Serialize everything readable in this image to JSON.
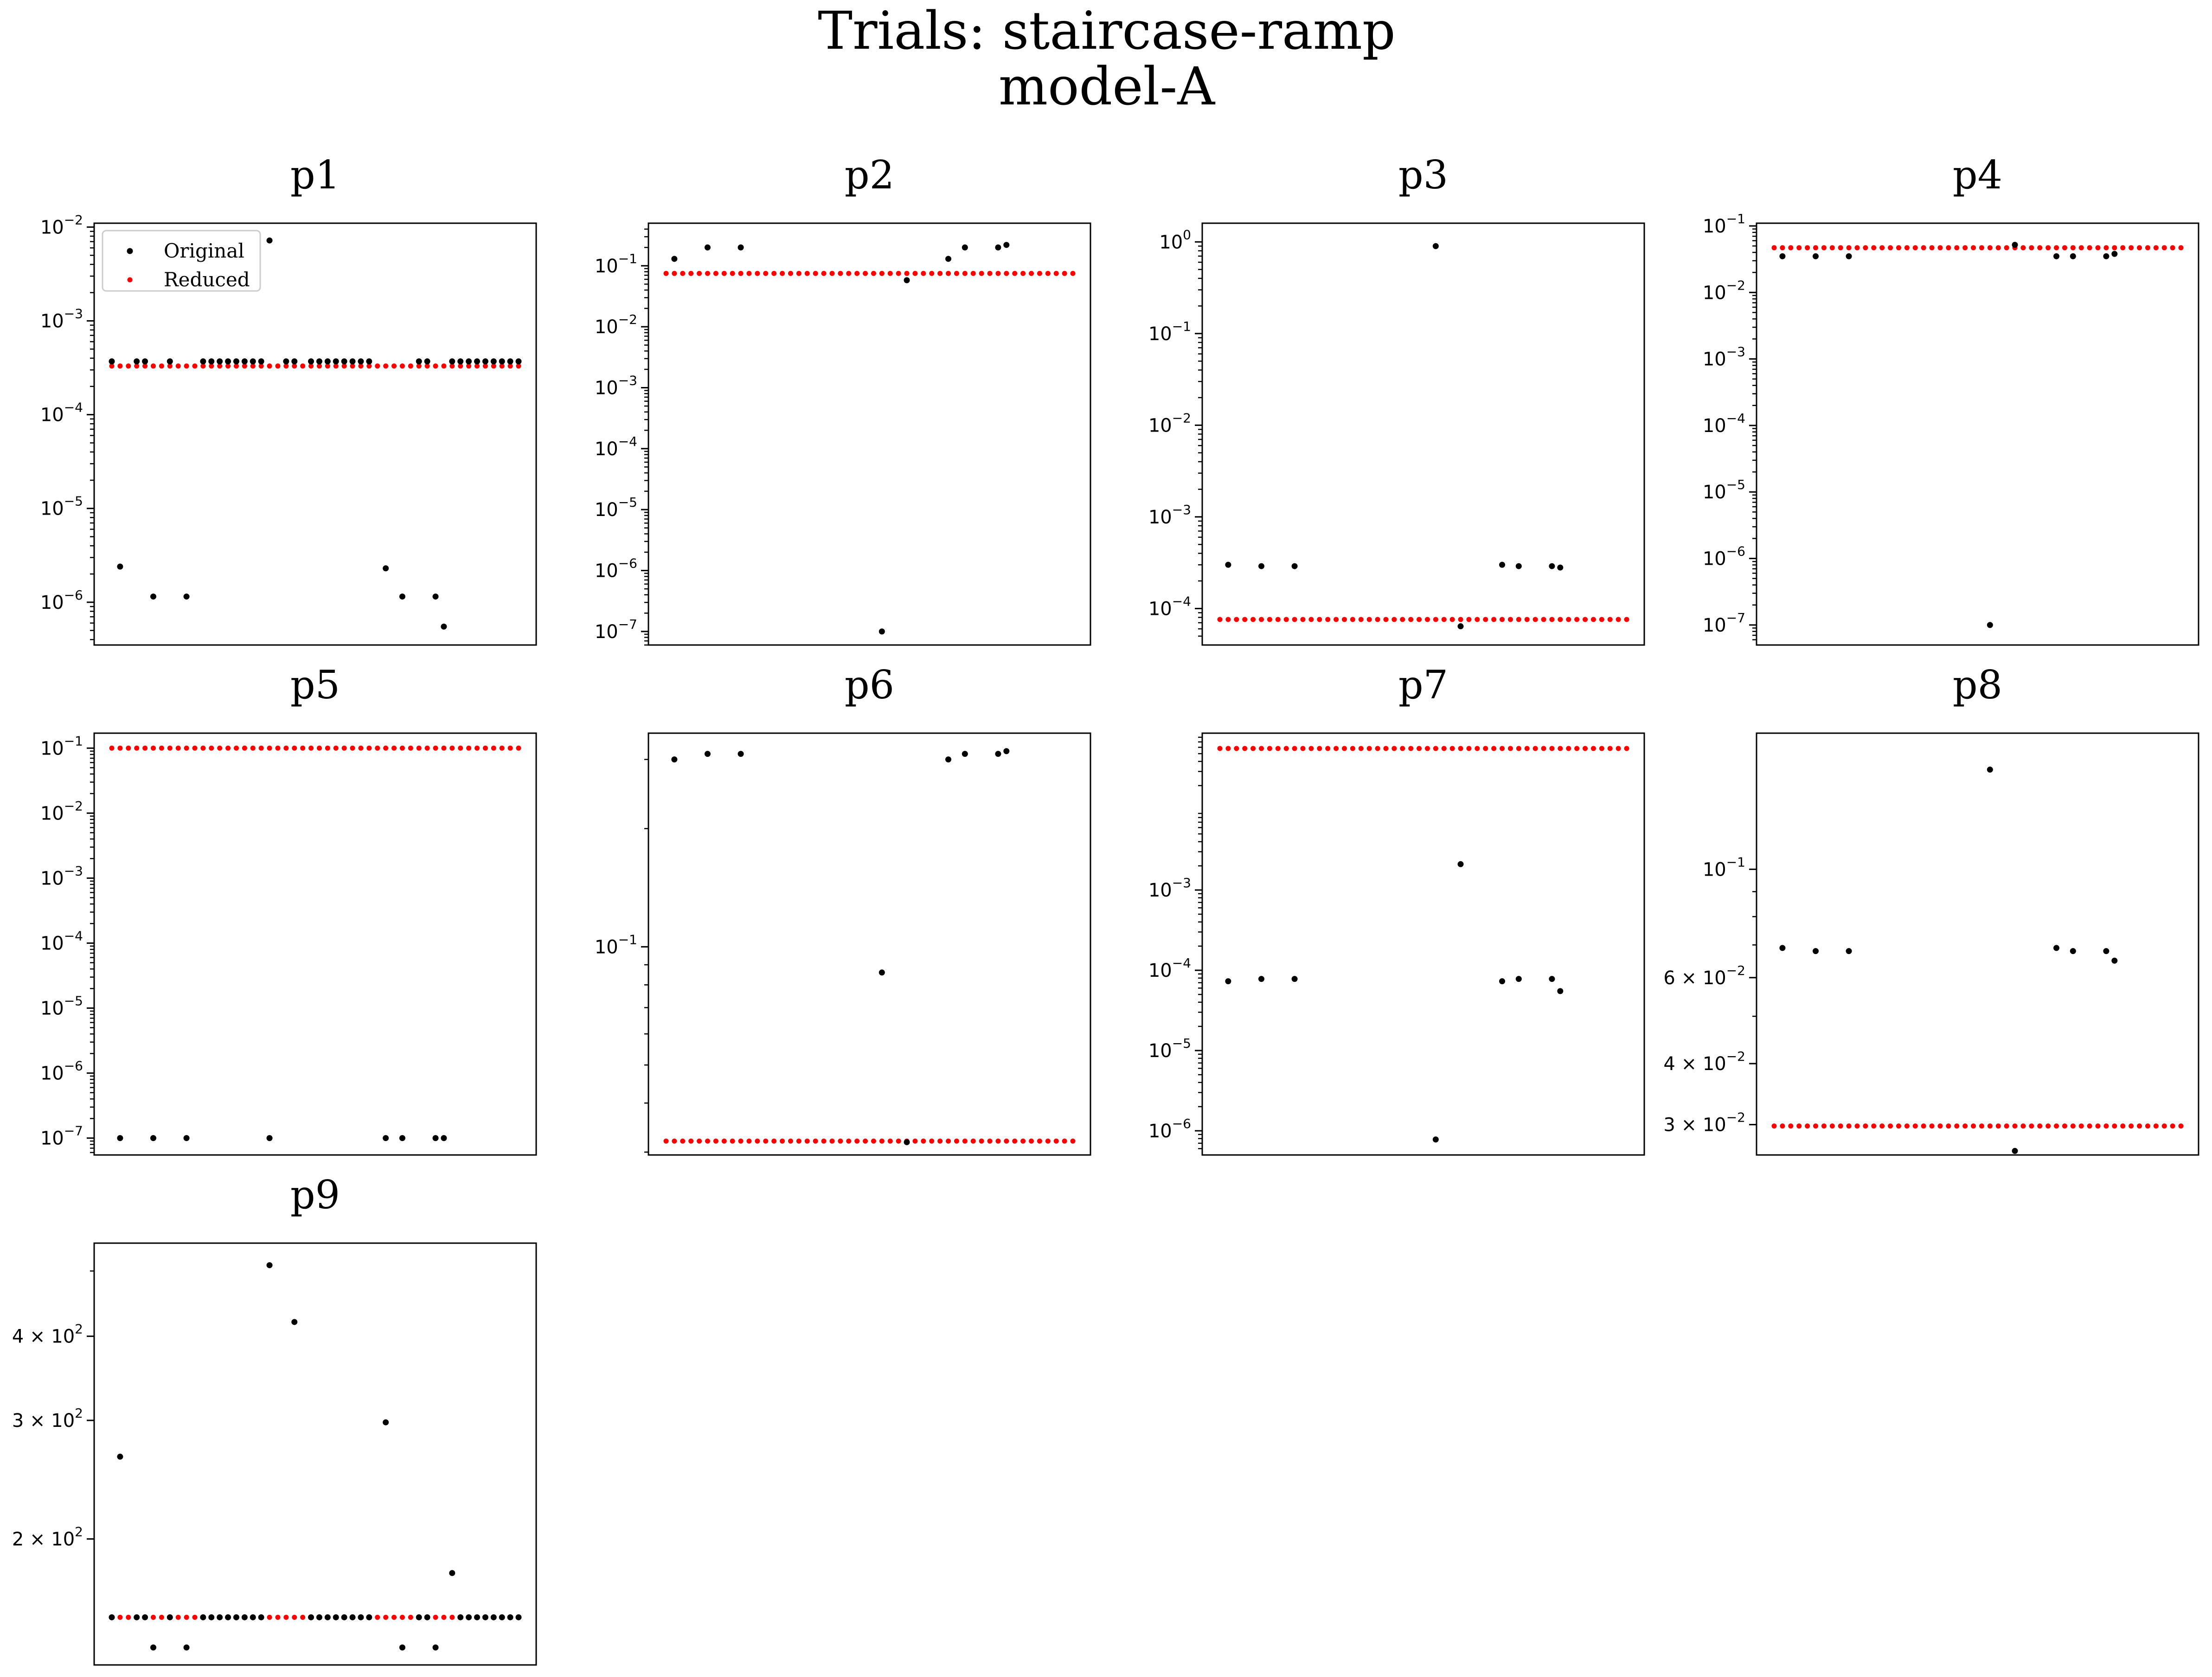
{
  "figure": {
    "title_line1": "Trials: staircase-ramp",
    "title_line2": "model-A"
  },
  "legend": {
    "original": "Original",
    "reduced": "Reduced"
  },
  "colors": {
    "original": "#000000",
    "reduced": "#ff0000"
  },
  "chart_data": [
    {
      "type": "scatter",
      "title": "p1",
      "yscale": "log",
      "ylim": [
        3.5e-07,
        0.011
      ],
      "yticks": [
        {
          "v": 1e-06,
          "b": "10",
          "e": "−6"
        },
        {
          "v": 1e-05,
          "b": "10",
          "e": "−5"
        },
        {
          "v": 0.0001,
          "b": "10",
          "e": "−4"
        },
        {
          "v": 0.001,
          "b": "10",
          "e": "−3"
        },
        {
          "v": 0.01,
          "b": "10",
          "e": "−2"
        }
      ],
      "n": 50,
      "reduced": 0.00033,
      "original_default": 0.00037,
      "original_outliers": {
        "1": 2.4e-06,
        "5": 1.15e-06,
        "9": 1.15e-06,
        "19": 0.0072,
        "33": 2.3e-06,
        "35": 1.15e-06,
        "39": 1.15e-06,
        "40": 5.5e-07
      },
      "original_skip": [
        2,
        6,
        8,
        10,
        20,
        23,
        32,
        34,
        36,
        40
      ],
      "legend": true
    },
    {
      "type": "scatter",
      "title": "p2",
      "yscale": "log",
      "ylim": [
        6e-08,
        0.5
      ],
      "yticks": [
        {
          "v": 1e-07,
          "b": "10",
          "e": "−7"
        },
        {
          "v": 1e-06,
          "b": "10",
          "e": "−6"
        },
        {
          "v": 1e-05,
          "b": "10",
          "e": "−5"
        },
        {
          "v": 0.0001,
          "b": "10",
          "e": "−4"
        },
        {
          "v": 0.001,
          "b": "10",
          "e": "−3"
        },
        {
          "v": 0.01,
          "b": "10",
          "e": "−2"
        },
        {
          "v": 0.1,
          "b": "10",
          "e": "−1"
        }
      ],
      "n": 50,
      "reduced": 0.075,
      "original_points": [
        [
          1,
          0.13
        ],
        [
          5,
          0.2
        ],
        [
          9,
          0.2
        ],
        [
          26,
          1e-07
        ],
        [
          29,
          0.058
        ],
        [
          34,
          0.13
        ],
        [
          36,
          0.2
        ],
        [
          40,
          0.2
        ],
        [
          41,
          0.22
        ]
      ]
    },
    {
      "type": "scatter",
      "title": "p3",
      "yscale": "log",
      "ylim": [
        4e-05,
        1.6
      ],
      "yticks": [
        {
          "v": 0.0001,
          "b": "10",
          "e": "−4"
        },
        {
          "v": 0.001,
          "b": "10",
          "e": "−3"
        },
        {
          "v": 0.01,
          "b": "10",
          "e": "−2"
        },
        {
          "v": 0.1,
          "b": "10",
          "e": "−1"
        },
        {
          "v": 1,
          "b": "10",
          "e": "0"
        }
      ],
      "n": 50,
      "reduced": 7.6e-05,
      "original_points": [
        [
          1,
          0.0003
        ],
        [
          5,
          0.00029
        ],
        [
          9,
          0.00029
        ],
        [
          26,
          0.9
        ],
        [
          29,
          6.4e-05
        ],
        [
          34,
          0.0003
        ],
        [
          36,
          0.00029
        ],
        [
          40,
          0.00029
        ],
        [
          41,
          0.00028
        ]
      ]
    },
    {
      "type": "scatter",
      "title": "p4",
      "yscale": "log",
      "ylim": [
        5e-08,
        0.11
      ],
      "yticks": [
        {
          "v": 1e-07,
          "b": "10",
          "e": "−7"
        },
        {
          "v": 1e-06,
          "b": "10",
          "e": "−6"
        },
        {
          "v": 1e-05,
          "b": "10",
          "e": "−5"
        },
        {
          "v": 0.0001,
          "b": "10",
          "e": "−4"
        },
        {
          "v": 0.001,
          "b": "10",
          "e": "−3"
        },
        {
          "v": 0.01,
          "b": "10",
          "e": "−2"
        },
        {
          "v": 0.1,
          "b": "10",
          "e": "−1"
        }
      ],
      "n": 50,
      "reduced": 0.047,
      "original_points": [
        [
          1,
          0.035
        ],
        [
          5,
          0.035
        ],
        [
          9,
          0.035
        ],
        [
          26,
          1e-07
        ],
        [
          29,
          0.052
        ],
        [
          34,
          0.035
        ],
        [
          36,
          0.035
        ],
        [
          40,
          0.035
        ],
        [
          41,
          0.038
        ]
      ]
    },
    {
      "type": "scatter",
      "title": "p5",
      "yscale": "log",
      "ylim": [
        5.5e-08,
        0.17
      ],
      "yticks": [
        {
          "v": 1e-07,
          "b": "10",
          "e": "−7"
        },
        {
          "v": 1e-06,
          "b": "10",
          "e": "−6"
        },
        {
          "v": 1e-05,
          "b": "10",
          "e": "−5"
        },
        {
          "v": 0.0001,
          "b": "10",
          "e": "−4"
        },
        {
          "v": 0.001,
          "b": "10",
          "e": "−3"
        },
        {
          "v": 0.01,
          "b": "10",
          "e": "−2"
        },
        {
          "v": 0.1,
          "b": "10",
          "e": "−1"
        }
      ],
      "n": 50,
      "reduced": 0.1,
      "original_points": [
        [
          1,
          1e-07
        ],
        [
          5,
          1e-07
        ],
        [
          9,
          1e-07
        ],
        [
          19,
          1e-07
        ],
        [
          33,
          1e-07
        ],
        [
          35,
          1e-07
        ],
        [
          39,
          1e-07
        ],
        [
          40,
          1e-07
        ]
      ]
    },
    {
      "type": "scatter",
      "title": "p6",
      "yscale": "log",
      "ylim": [
        0.0295,
        0.35
      ],
      "yticks": [
        {
          "v": 0.1,
          "b": "10",
          "e": "−1"
        }
      ],
      "n": 50,
      "reduced": 0.032,
      "original_points": [
        [
          1,
          0.3
        ],
        [
          5,
          0.31
        ],
        [
          9,
          0.31
        ],
        [
          26,
          0.086
        ],
        [
          29,
          0.0318
        ],
        [
          34,
          0.3
        ],
        [
          36,
          0.31
        ],
        [
          40,
          0.31
        ],
        [
          41,
          0.315
        ]
      ]
    },
    {
      "type": "scatter",
      "title": "p7",
      "yscale": "log",
      "ylim": [
        5e-07,
        0.09
      ],
      "yticks": [
        {
          "v": 1e-06,
          "b": "10",
          "e": "−6"
        },
        {
          "v": 1e-05,
          "b": "10",
          "e": "−5"
        },
        {
          "v": 0.0001,
          "b": "10",
          "e": "−4"
        },
        {
          "v": 0.001,
          "b": "10",
          "e": "−3"
        }
      ],
      "n": 50,
      "reduced": 0.058,
      "original_points": [
        [
          1,
          7.3e-05
        ],
        [
          5,
          7.8e-05
        ],
        [
          9,
          7.8e-05
        ],
        [
          26,
          7.8e-07
        ],
        [
          29,
          0.0021
        ],
        [
          34,
          7.3e-05
        ],
        [
          36,
          7.8e-05
        ],
        [
          40,
          7.8e-05
        ],
        [
          41,
          5.5e-05
        ]
      ]
    },
    {
      "type": "scatter",
      "title": "p8",
      "yscale": "log",
      "ylim": [
        0.026,
        0.19
      ],
      "yticks": [
        {
          "v": 0.03,
          "b": "3 × 10",
          "e": "−2"
        },
        {
          "v": 0.04,
          "b": "4 × 10",
          "e": "−2"
        },
        {
          "v": 0.06,
          "b": "6 × 10",
          "e": "−2"
        },
        {
          "v": 0.1,
          "b": "10",
          "e": "−1"
        }
      ],
      "n": 50,
      "reduced": 0.0298,
      "original_points": [
        [
          1,
          0.069
        ],
        [
          5,
          0.068
        ],
        [
          9,
          0.068
        ],
        [
          26,
          0.16
        ],
        [
          29,
          0.0265
        ],
        [
          34,
          0.069
        ],
        [
          36,
          0.068
        ],
        [
          40,
          0.068
        ],
        [
          41,
          0.065
        ]
      ]
    },
    {
      "type": "scatter",
      "title": "p9",
      "yscale": "log",
      "ylim": [
        130,
        550
      ],
      "yticks": [
        {
          "v": 200,
          "b": "2 × 10",
          "e": "2"
        },
        {
          "v": 300,
          "b": "3 × 10",
          "e": "2"
        },
        {
          "v": 400,
          "b": "4 × 10",
          "e": "2"
        }
      ],
      "n": 50,
      "reduced": 153,
      "original_default": 153,
      "original_outliers": {
        "1": 265,
        "5": 138,
        "9": 138,
        "19": 510,
        "22": 420,
        "33": 298,
        "35": 138,
        "39": 138,
        "41": 178
      },
      "original_skip": [
        2,
        6,
        8,
        10,
        20,
        21,
        23,
        32,
        34,
        36,
        40
      ]
    }
  ]
}
